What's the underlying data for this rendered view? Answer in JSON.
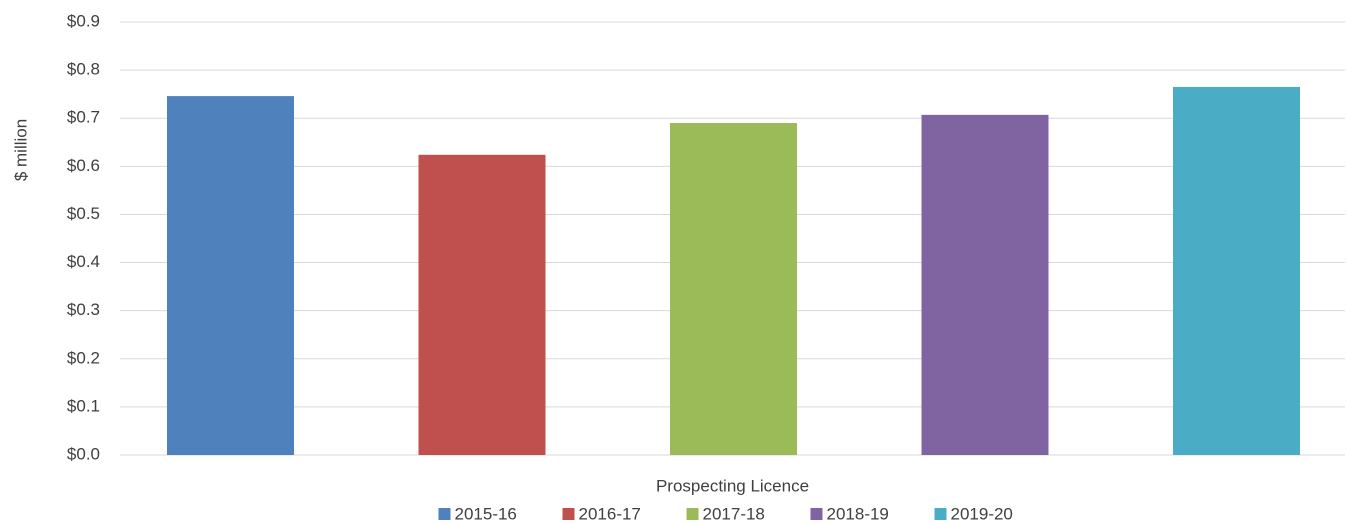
{
  "chart_data": {
    "type": "bar",
    "y_label": "$ million",
    "categories": [
      "Prospecting Licence"
    ],
    "series": [
      {
        "name": "2015-16",
        "color": "#4f81bd",
        "values": [
          0.746
        ]
      },
      {
        "name": "2016-17",
        "color": "#c0504d",
        "values": [
          0.624
        ]
      },
      {
        "name": "2017-18",
        "color": "#9bbb59",
        "values": [
          0.69
        ]
      },
      {
        "name": "2018-19",
        "color": "#8064a2",
        "values": [
          0.707
        ]
      },
      {
        "name": "2019-20",
        "color": "#4bacc6",
        "values": [
          0.765
        ]
      }
    ],
    "ylim": [
      0,
      0.9
    ],
    "yticks": [
      {
        "value": 0,
        "label": "$0.0"
      },
      {
        "value": 0.1,
        "label": "$0.1"
      },
      {
        "value": 0.2,
        "label": "$0.2"
      },
      {
        "value": 0.3,
        "label": "$0.3"
      },
      {
        "value": 0.4,
        "label": "$0.4"
      },
      {
        "value": 0.5,
        "label": "$0.5"
      },
      {
        "value": 0.6,
        "label": "$0.6"
      },
      {
        "value": 0.7,
        "label": "$0.7"
      },
      {
        "value": 0.8,
        "label": "$0.8"
      },
      {
        "value": 0.9,
        "label": "$0.9"
      }
    ],
    "grid": true,
    "legend": "bottom"
  }
}
